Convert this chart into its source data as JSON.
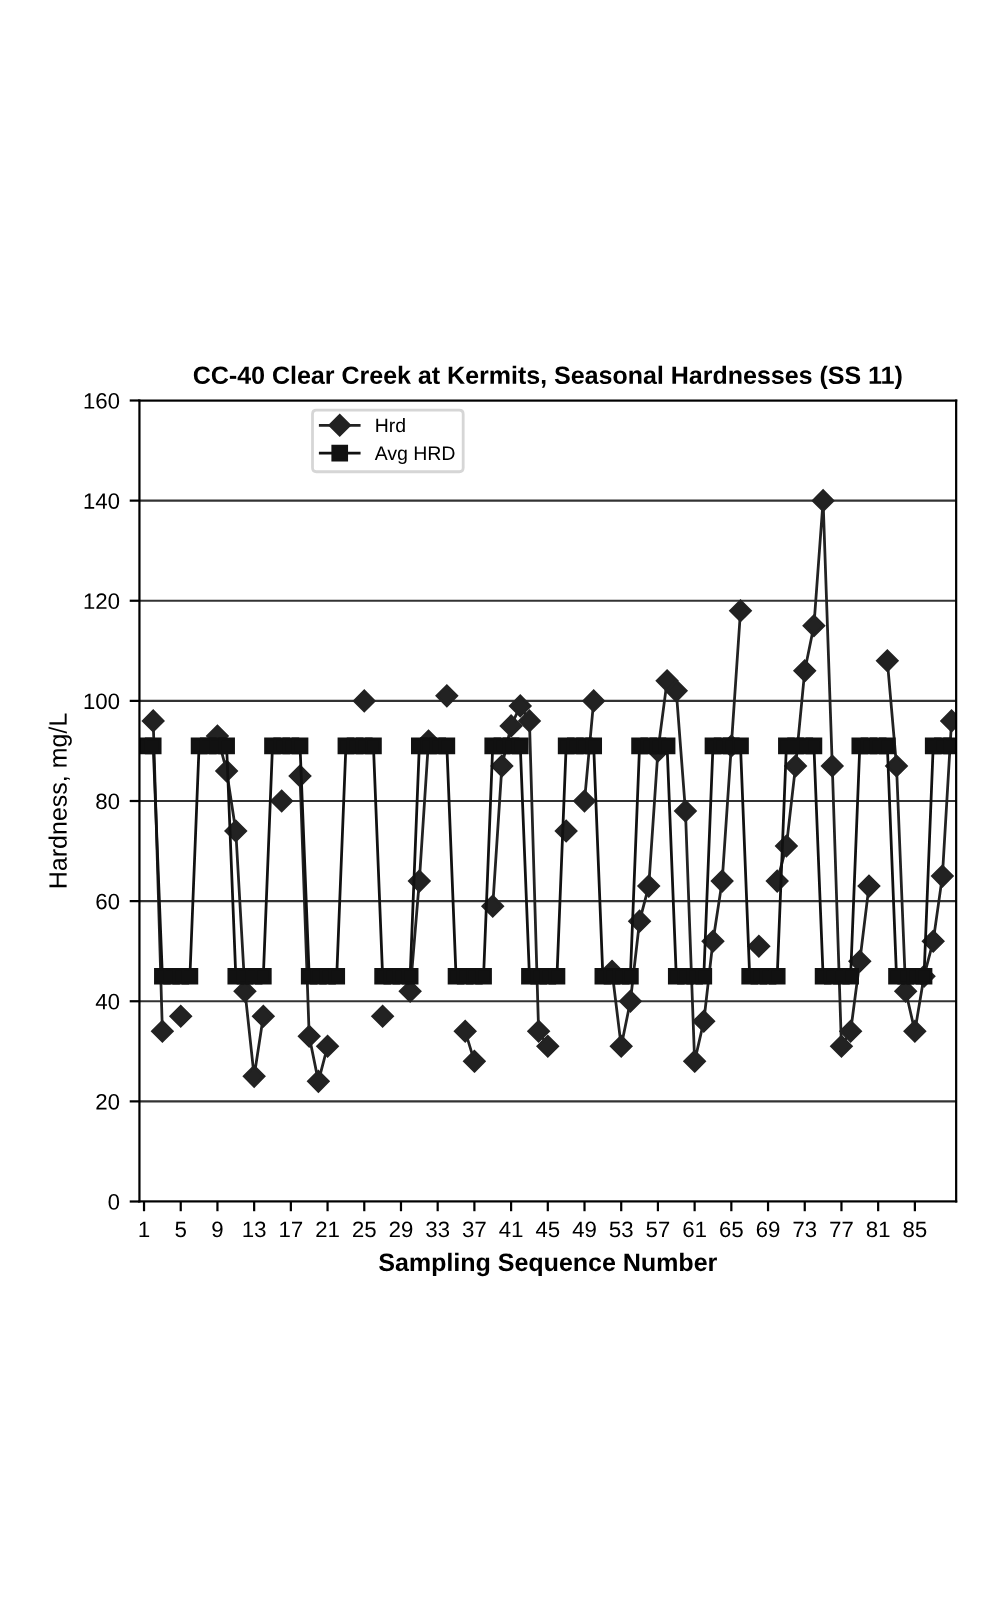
{
  "chart_data": {
    "type": "line",
    "title": "CC-40 Clear Creek at Kermits, Seasonal Hardnesses (SS 11)",
    "xlabel": "Sampling Sequence Number",
    "ylabel": "Hardness, mg/L",
    "x": [
      1,
      2,
      3,
      4,
      5,
      6,
      7,
      8,
      9,
      10,
      11,
      12,
      13,
      14,
      15,
      16,
      17,
      18,
      19,
      20,
      21,
      22,
      23,
      24,
      25,
      26,
      27,
      28,
      29,
      30,
      31,
      32,
      33,
      34,
      35,
      36,
      37,
      38,
      39,
      40,
      41,
      42,
      43,
      44,
      45,
      46,
      47,
      48,
      49,
      50,
      51,
      52,
      53,
      54,
      55,
      56,
      57,
      58,
      59,
      60,
      61,
      62,
      63,
      64,
      65,
      66,
      67,
      68,
      69,
      70,
      71,
      72,
      73,
      74,
      75,
      76,
      77,
      78,
      79,
      80,
      81,
      82,
      83,
      84,
      85,
      86,
      87,
      88,
      89
    ],
    "series": [
      {
        "name": "Hrd",
        "color": "#222222",
        "marker": "diamond",
        "values": [
          null,
          96,
          34,
          null,
          37,
          null,
          null,
          null,
          93,
          86,
          74,
          42,
          25,
          37,
          null,
          80,
          null,
          85,
          33,
          24,
          31,
          null,
          null,
          null,
          100,
          null,
          37,
          null,
          null,
          42,
          64,
          92,
          null,
          101,
          null,
          34,
          28,
          null,
          59,
          87,
          95,
          99,
          96,
          34,
          31,
          null,
          74,
          null,
          80,
          100,
          null,
          46,
          31,
          40,
          56,
          63,
          90,
          104,
          102,
          78,
          28,
          36,
          52,
          64,
          91,
          118,
          null,
          51,
          null,
          64,
          71,
          87,
          106,
          115,
          140,
          87,
          31,
          34,
          48,
          63,
          null,
          108,
          87,
          42,
          34,
          45,
          52,
          65,
          96
        ]
      },
      {
        "name": "Avg HRD",
        "color": "#111111",
        "marker": "square",
        "values": [
          91,
          91,
          45,
          45,
          45,
          45,
          91,
          91,
          91,
          91,
          45,
          45,
          45,
          45,
          91,
          91,
          91,
          91,
          45,
          45,
          45,
          45,
          91,
          91,
          91,
          91,
          45,
          45,
          45,
          45,
          91,
          91,
          91,
          91,
          45,
          45,
          45,
          45,
          91,
          91,
          91,
          91,
          45,
          45,
          45,
          45,
          91,
          91,
          91,
          91,
          45,
          45,
          45,
          45,
          91,
          91,
          91,
          91,
          45,
          45,
          45,
          45,
          91,
          91,
          91,
          91,
          45,
          45,
          45,
          45,
          91,
          91,
          91,
          91,
          45,
          45,
          45,
          45,
          91,
          91,
          91,
          91,
          45,
          45,
          45,
          45,
          91,
          91,
          91
        ]
      }
    ],
    "xlim": [
      0.5,
      89.5
    ],
    "xticks": [
      1,
      5,
      9,
      13,
      17,
      21,
      25,
      29,
      33,
      37,
      41,
      45,
      49,
      53,
      57,
      61,
      65,
      69,
      73,
      77,
      81,
      85
    ],
    "ylim": [
      0,
      160
    ],
    "yticks": [
      0,
      20,
      40,
      60,
      80,
      100,
      120,
      140,
      160
    ],
    "grid": "y",
    "legend": "top left",
    "line_style": "solid"
  }
}
